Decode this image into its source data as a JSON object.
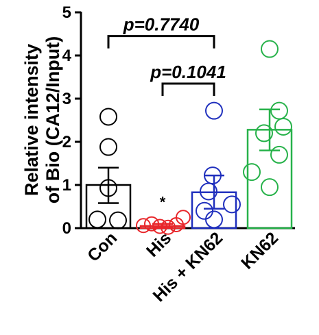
{
  "chart_data": {
    "type": "bar",
    "title": "",
    "xlabel": "",
    "ylabel": [
      "Relative intensity",
      "of Bio (CA12/Input)"
    ],
    "ylim": [
      0,
      5
    ],
    "yticks": [
      "0",
      "1",
      "2",
      "3",
      "4",
      "5"
    ],
    "categories": [
      "Con",
      "His",
      "His + KN62",
      "KN62"
    ],
    "colors": [
      "#000000",
      "#e8262a",
      "#1f2fbd",
      "#27b24a"
    ],
    "bars": [
      {
        "name": "Con",
        "mean": 1.0,
        "sem_low": 0.58,
        "sem_high": 1.4,
        "points": [
          2.58,
          1.88,
          0.93,
          0.2,
          0.18
        ]
      },
      {
        "name": "His",
        "mean": 0.05,
        "sem_low": 0.02,
        "sem_high": 0.1,
        "points": [
          0.06,
          0.1,
          0.04,
          0.02,
          0.08,
          0.25
        ],
        "annotation": "*"
      },
      {
        "name": "His + KN62",
        "mean": 0.83,
        "sem_low": 0.45,
        "sem_high": 1.22,
        "points": [
          2.72,
          1.22,
          0.85,
          0.55,
          0.4,
          0.2
        ]
      },
      {
        "name": "KN62",
        "mean": 2.28,
        "sem_low": 1.8,
        "sem_high": 2.75,
        "points": [
          4.15,
          2.72,
          2.35,
          2.2,
          1.7,
          1.3,
          0.95
        ]
      }
    ],
    "comparisons": [
      {
        "from": 0,
        "to": 2,
        "label": "p=0.7740",
        "y": 4.45
      },
      {
        "from": 1,
        "to": 2,
        "label": "p=0.1041",
        "y": 3.35
      }
    ],
    "grid": false,
    "legend": "none"
  }
}
